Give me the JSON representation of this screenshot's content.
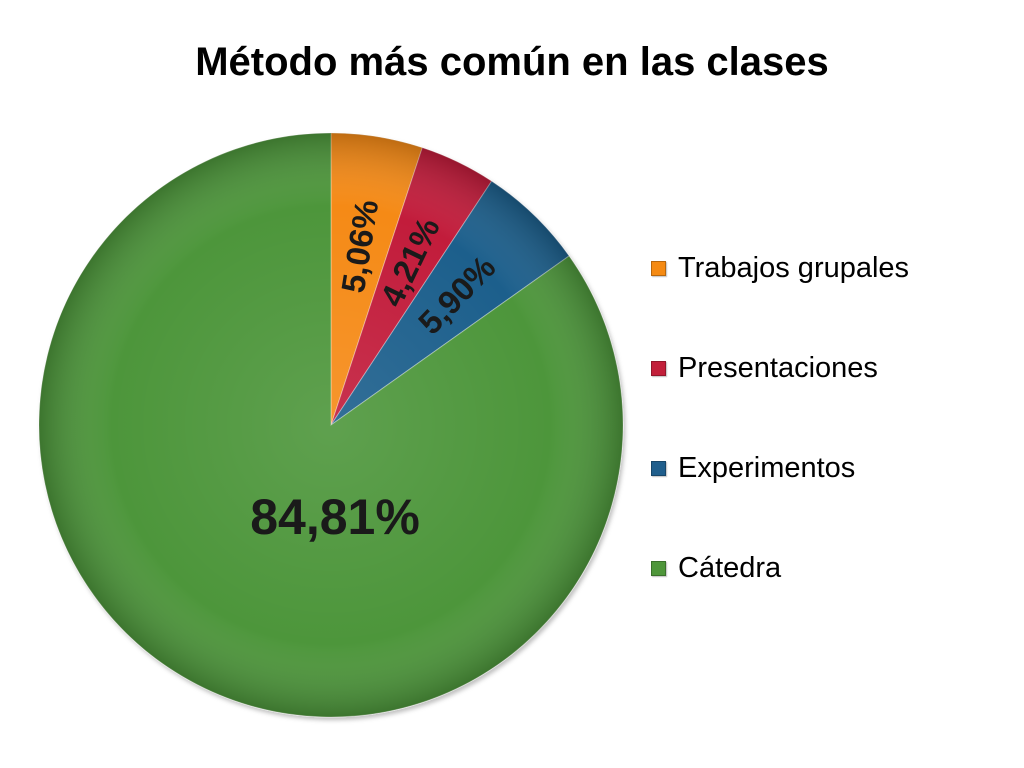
{
  "chart_data": {
    "type": "pie",
    "title": "Método más común en las clases",
    "start_angle_deg": 0,
    "direction": "clockwise",
    "categories": [
      "Trabajos grupales",
      "Presentaciones",
      "Experimentos",
      "Cátedra"
    ],
    "values": [
      5.06,
      4.21,
      5.9,
      84.81
    ],
    "data_labels": [
      "5,06%",
      "4,21%",
      "5,90%",
      "84,81%"
    ],
    "colors": [
      "#f58a12",
      "#c21f3a",
      "#1f5e8c",
      "#4e963a"
    ],
    "legend_position": "right"
  }
}
